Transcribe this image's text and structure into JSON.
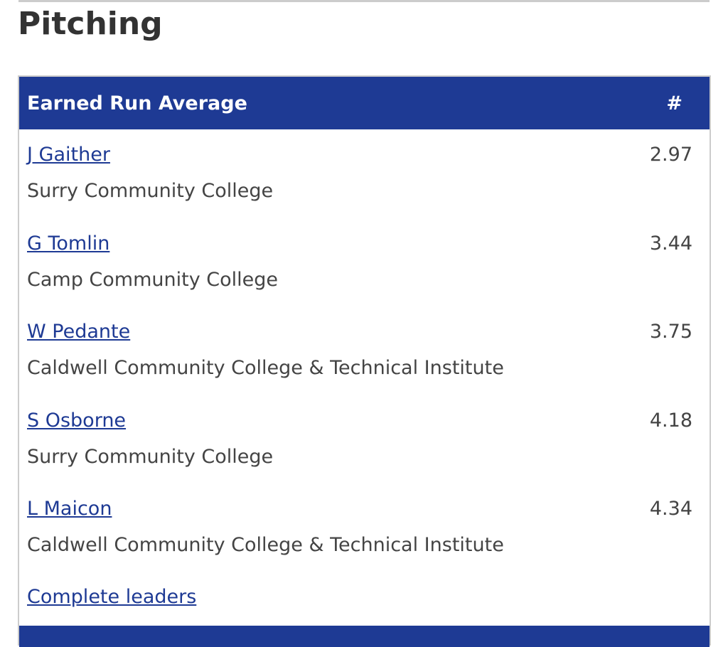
{
  "heading": "Pitching",
  "table": {
    "header": [
      "Earned Run Average",
      "#"
    ],
    "rows": [
      {
        "name": "J Gaither",
        "team": "Surry Community College",
        "value": "2.97"
      },
      {
        "name": "G Tomlin",
        "team": "Camp Community College",
        "value": "3.44"
      },
      {
        "name": "W Pedante",
        "team": "Caldwell Community College & Technical Institute",
        "value": "3.75"
      },
      {
        "name": "S Osborne",
        "team": "Surry Community College",
        "value": "4.18"
      },
      {
        "name": "L Maicon",
        "team": "Caldwell Community College & Technical Institute",
        "value": "4.34"
      }
    ],
    "footer_link": "Complete leaders"
  }
}
